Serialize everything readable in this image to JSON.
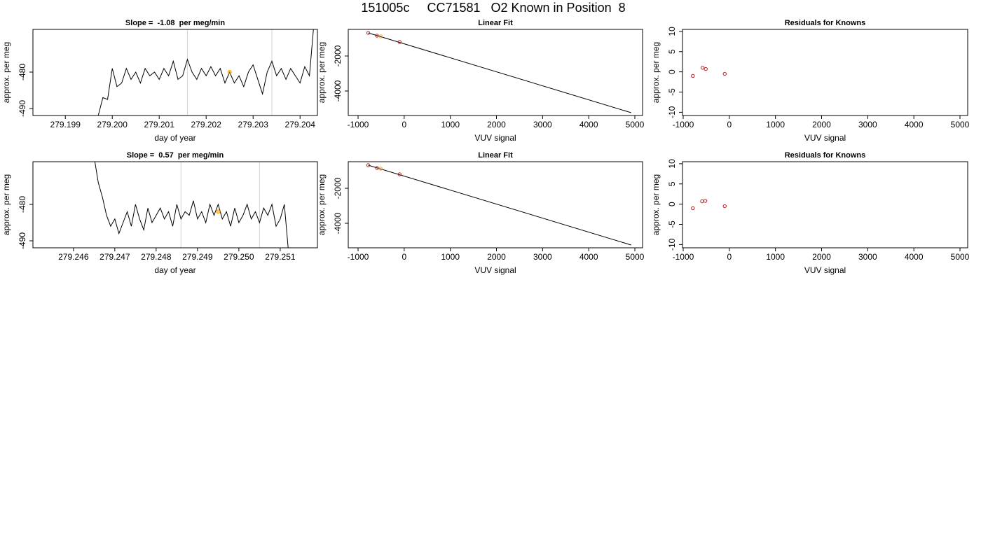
{
  "title": "151005c     CC71581   O2 Known in Position  8",
  "chart_data": [
    {
      "type": "line",
      "title": "Slope =  -1.08  per meg/min",
      "xlabel": "day of year",
      "ylabel": "approx. per meg",
      "x": [
        279.1997,
        279.1998,
        279.1999,
        279.2,
        279.2001,
        279.2002,
        279.2003,
        279.2004,
        279.2005,
        279.2006,
        279.2007,
        279.2008,
        279.2009,
        279.201,
        279.2011,
        279.2012,
        279.2013,
        279.2014,
        279.2015,
        279.2016,
        279.2017,
        279.2018,
        279.2019,
        279.202,
        279.2021,
        279.2022,
        279.2023,
        279.2024,
        279.2025,
        279.2026,
        279.2027,
        279.2028,
        279.2029,
        279.203,
        279.2031,
        279.2032,
        279.2033,
        279.2034,
        279.2035,
        279.2036,
        279.2037,
        279.2038,
        279.2039,
        279.204,
        279.2041,
        279.2042,
        279.2043
      ],
      "values": [
        -492,
        -487,
        -487.5,
        -479,
        -484,
        -483,
        -479,
        -482,
        -480,
        -483,
        -479,
        -481,
        -480,
        -482,
        -479,
        -481,
        -477,
        -482,
        -481,
        -476.5,
        -480,
        -482,
        -479,
        -481,
        -478.5,
        -481,
        -479,
        -483,
        -480,
        -483,
        -481,
        -484,
        -480,
        -478,
        -482,
        -486,
        -480,
        -477,
        -481,
        -479,
        -482,
        -479,
        -481,
        -483,
        -478.5,
        -481,
        -466
      ],
      "color": "#000000",
      "vlines": [
        279.2016,
        279.2034
      ],
      "vline_color": "#d3d3d3",
      "highlight": {
        "x": 279.2025,
        "y": -480,
        "color": "#ffa500"
      },
      "xlim": [
        279.19831,
        279.20437
      ],
      "ylim": [
        -491.92,
        -468.27
      ],
      "xticks": [
        279.199,
        {
          "value": 279.2,
          "label": "279.200"
        },
        279.201,
        279.202,
        279.203,
        279.204
      ],
      "yticks": [
        -490,
        -480
      ]
    },
    {
      "type": "scatter",
      "title": "Linear Fit",
      "xlabel": "VUV signal",
      "ylabel": "approx. per meg",
      "series": [
        {
          "color": "#b22222",
          "x": [
            -780,
            -590,
            -100
          ],
          "values": [
            -680,
            -840,
            -1200
          ]
        },
        {
          "color": "#ffa500",
          "x": [
            -510
          ],
          "values": [
            -880
          ]
        }
      ],
      "fit": {
        "x": [
          -780,
          4920
        ],
        "values": [
          -680,
          -5240
        ],
        "color": "#000000"
      },
      "xlim": [
        -1213,
        5167
      ],
      "ylim": [
        -5400,
        -480
      ],
      "xticks": [
        -1000,
        0,
        1000,
        2000,
        3000,
        4000,
        5000
      ],
      "yticks": [
        -4000,
        -2000
      ]
    },
    {
      "type": "scatter",
      "title": "Residuals for Knowns",
      "xlabel": "VUV signal",
      "ylabel": "approx. per meg",
      "series": [
        {
          "color": "#b22222",
          "x": [
            -790,
            -580,
            -510,
            -100
          ],
          "values": [
            -1,
            1,
            0.7,
            -0.5
          ]
        }
      ],
      "xlim": [
        -1015,
        5167
      ],
      "ylim": [
        -10.8,
        10.5
      ],
      "xticks": [
        -1000,
        0,
        1000,
        2000,
        3000,
        4000,
        5000
      ],
      "yticks": [
        -10,
        -5,
        0,
        5,
        10
      ]
    },
    {
      "type": "line",
      "title": "Slope =  0.57  per meg/min",
      "xlabel": "day of year",
      "ylabel": "approx. per meg",
      "x": [
        279.2465,
        279.2466,
        279.2467,
        279.2468,
        279.2469,
        279.247,
        279.2471,
        279.2472,
        279.2473,
        279.2474,
        279.2475,
        279.2476,
        279.2477,
        279.2478,
        279.2479,
        279.248,
        279.2481,
        279.2482,
        279.2483,
        279.2484,
        279.2485,
        279.2486,
        279.2487,
        279.2488,
        279.2489,
        279.249,
        279.2491,
        279.2492,
        279.2493,
        279.2494,
        279.2495,
        279.2496,
        279.2497,
        279.2498,
        279.2499,
        279.25,
        279.2501,
        279.2502,
        279.2503,
        279.2504,
        279.2505,
        279.2506,
        279.2507,
        279.2508,
        279.2509,
        279.251,
        279.2511,
        279.2512
      ],
      "values": [
        -467,
        -474,
        -478,
        -483,
        -486,
        -484,
        -488,
        -485,
        -482,
        -486,
        -480,
        -484,
        -487,
        -481,
        -485,
        -483,
        -481,
        -484,
        -482,
        -486,
        -480,
        -484,
        -482,
        -483,
        -479,
        -484,
        -482,
        -485,
        -480,
        -483,
        -480,
        -484,
        -482,
        -486,
        -481,
        -485,
        -483,
        -480,
        -484,
        -482,
        -485,
        -481,
        -483,
        -480,
        -486,
        -484,
        -480,
        -493
      ],
      "color": "#000000",
      "vlines": [
        279.2486,
        279.2505
      ],
      "vline_color": "#d3d3d3",
      "highlight": {
        "x": 279.2495,
        "y": -482,
        "color": "#ffa500"
      },
      "xlim": [
        279.24502,
        279.2519
      ],
      "ylim": [
        -491.92,
        -468.27
      ],
      "xticks": [
        279.246,
        279.247,
        279.248,
        279.249,
        {
          "value": 279.25,
          "label": "279.250"
        },
        279.251
      ],
      "yticks": [
        -490,
        -480
      ]
    },
    {
      "type": "scatter",
      "title": "Linear Fit",
      "xlabel": "VUV signal",
      "ylabel": "approx. per meg",
      "series": [
        {
          "color": "#b22222",
          "x": [
            -780,
            -590,
            -100
          ],
          "values": [
            -680,
            -840,
            -1200
          ]
        },
        {
          "color": "#ffa500",
          "x": [
            -510
          ],
          "values": [
            -880
          ]
        }
      ],
      "fit": {
        "x": [
          -780,
          4920
        ],
        "values": [
          -680,
          -5240
        ],
        "color": "#000000"
      },
      "xlim": [
        -1213,
        5167
      ],
      "ylim": [
        -5400,
        -480
      ],
      "xticks": [
        -1000,
        0,
        1000,
        2000,
        3000,
        4000,
        5000
      ],
      "yticks": [
        -4000,
        -2000
      ]
    },
    {
      "type": "scatter",
      "title": "Residuals for Knowns",
      "xlabel": "VUV signal",
      "ylabel": "approx. per meg",
      "series": [
        {
          "color": "#b22222",
          "x": [
            -790,
            -590,
            -520,
            -100
          ],
          "values": [
            -1,
            0.7,
            0.8,
            -0.5
          ]
        }
      ],
      "xlim": [
        -1015,
        5167
      ],
      "ylim": [
        -10.8,
        10.5
      ],
      "xticks": [
        -1000,
        0,
        1000,
        2000,
        3000,
        4000,
        5000
      ],
      "yticks": [
        -10,
        -5,
        0,
        5,
        10
      ]
    }
  ]
}
